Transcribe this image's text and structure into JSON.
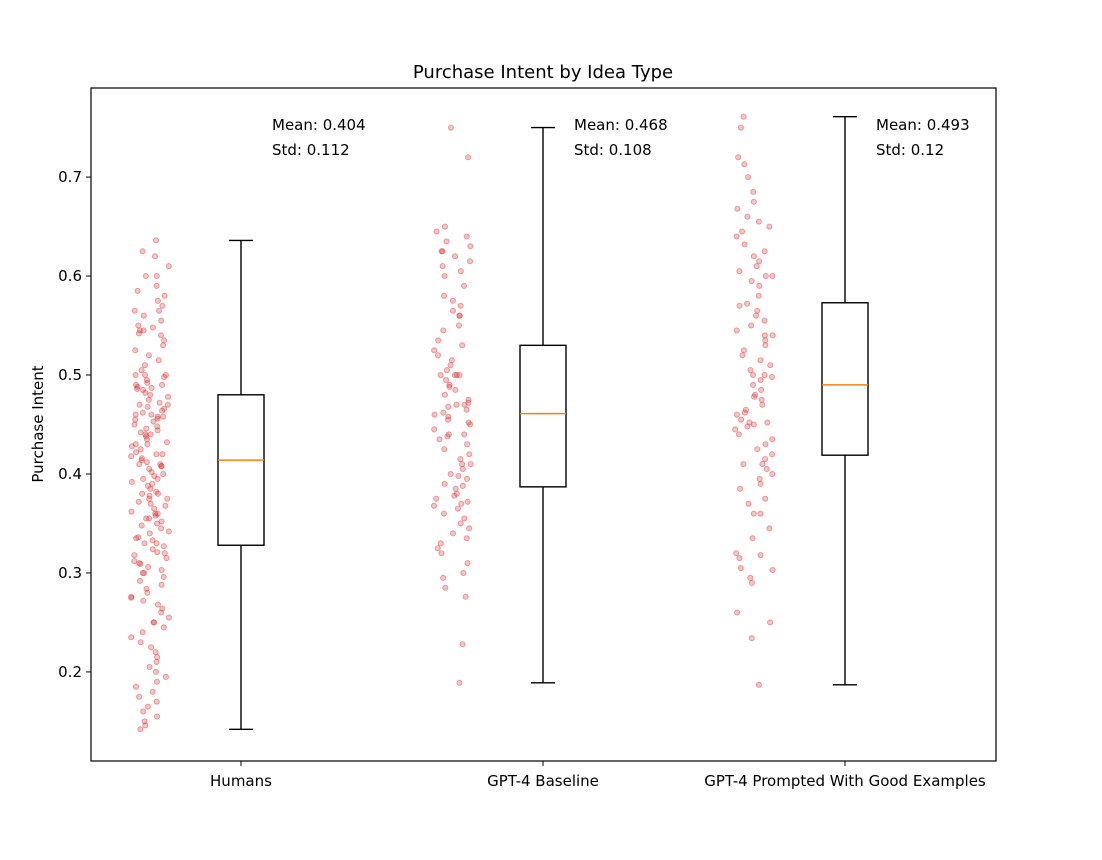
{
  "chart_data": {
    "type": "box",
    "title": "Purchase Intent by Idea Type",
    "xlabel": "",
    "ylabel": "Purchase Intent",
    "ylim": [
      0.11,
      0.79
    ],
    "yticks": [
      0.2,
      0.3,
      0.4,
      0.5,
      0.6,
      0.7
    ],
    "categories": [
      "Humans",
      "GPT-4 Baseline",
      "GPT-4 Prompted With Good Examples"
    ],
    "grid": false,
    "boxes": [
      {
        "category": "Humans",
        "whisker_low": 0.142,
        "q1": 0.328,
        "median": 0.414,
        "q3": 0.48,
        "whisker_high": 0.636,
        "mean_label": "Mean: 0.404",
        "std_label": "Std: 0.112"
      },
      {
        "category": "GPT-4 Baseline",
        "whisker_low": 0.189,
        "q1": 0.387,
        "median": 0.461,
        "q3": 0.53,
        "whisker_high": 0.75,
        "mean_label": "Mean: 0.468",
        "std_label": "Std: 0.108"
      },
      {
        "category": "GPT-4 Prompted With Good Examples",
        "whisker_low": 0.187,
        "q1": 0.419,
        "median": 0.49,
        "q3": 0.573,
        "whisker_high": 0.761,
        "mean_label": "Mean: 0.493",
        "std_label": "Std: 0.12"
      }
    ],
    "scatter_groups": [
      {
        "category": "Humans",
        "values": [
          0.636,
          0.625,
          0.62,
          0.61,
          0.6,
          0.59,
          0.585,
          0.58,
          0.575,
          0.57,
          0.565,
          0.56,
          0.555,
          0.55,
          0.548,
          0.545,
          0.542,
          0.54,
          0.535,
          0.53,
          0.525,
          0.52,
          0.515,
          0.51,
          0.505,
          0.5,
          0.5,
          0.498,
          0.495,
          0.492,
          0.49,
          0.488,
          0.486,
          0.485,
          0.482,
          0.48,
          0.478,
          0.475,
          0.472,
          0.47,
          0.468,
          0.466,
          0.464,
          0.462,
          0.46,
          0.458,
          0.456,
          0.455,
          0.453,
          0.45,
          0.448,
          0.446,
          0.444,
          0.442,
          0.44,
          0.438,
          0.435,
          0.432,
          0.43,
          0.428,
          0.425,
          0.422,
          0.42,
          0.418,
          0.416,
          0.414,
          0.412,
          0.41,
          0.408,
          0.405,
          0.402,
          0.4,
          0.398,
          0.395,
          0.392,
          0.39,
          0.388,
          0.385,
          0.382,
          0.38,
          0.378,
          0.375,
          0.372,
          0.37,
          0.368,
          0.365,
          0.362,
          0.36,
          0.358,
          0.355,
          0.352,
          0.35,
          0.348,
          0.345,
          0.342,
          0.34,
          0.336,
          0.333,
          0.33,
          0.327,
          0.324,
          0.321,
          0.318,
          0.315,
          0.312,
          0.309,
          0.306,
          0.303,
          0.3,
          0.296,
          0.292,
          0.288,
          0.284,
          0.28,
          0.276,
          0.272,
          0.268,
          0.264,
          0.26,
          0.255,
          0.25,
          0.245,
          0.24,
          0.235,
          0.23,
          0.225,
          0.22,
          0.215,
          0.21,
          0.205,
          0.2,
          0.195,
          0.19,
          0.185,
          0.18,
          0.175,
          0.17,
          0.165,
          0.16,
          0.155,
          0.15,
          0.146,
          0.142,
          0.545,
          0.5,
          0.487,
          0.47,
          0.458,
          0.44,
          0.42,
          0.408,
          0.395,
          0.375,
          0.355,
          0.335,
          0.32,
          0.3,
          0.275,
          0.25,
          0.6,
          0.565,
          0.49,
          0.46,
          0.43,
          0.41,
          0.38,
          0.36,
          0.33,
          0.31
        ]
      },
      {
        "category": "GPT-4 Baseline",
        "values": [
          0.75,
          0.72,
          0.65,
          0.645,
          0.64,
          0.635,
          0.63,
          0.625,
          0.625,
          0.62,
          0.615,
          0.61,
          0.605,
          0.6,
          0.59,
          0.58,
          0.575,
          0.57,
          0.565,
          0.56,
          0.55,
          0.545,
          0.535,
          0.53,
          0.525,
          0.52,
          0.515,
          0.51,
          0.505,
          0.5,
          0.5,
          0.5,
          0.495,
          0.49,
          0.488,
          0.485,
          0.48,
          0.475,
          0.472,
          0.47,
          0.468,
          0.465,
          0.462,
          0.46,
          0.458,
          0.455,
          0.452,
          0.45,
          0.445,
          0.44,
          0.438,
          0.435,
          0.43,
          0.425,
          0.42,
          0.415,
          0.41,
          0.405,
          0.4,
          0.398,
          0.395,
          0.39,
          0.388,
          0.385,
          0.38,
          0.378,
          0.375,
          0.372,
          0.37,
          0.368,
          0.365,
          0.36,
          0.355,
          0.35,
          0.345,
          0.34,
          0.335,
          0.33,
          0.325,
          0.32,
          0.31,
          0.3,
          0.295,
          0.285,
          0.276,
          0.228,
          0.189,
          0.56,
          0.5,
          0.47,
          0.44,
          0.41
        ]
      },
      {
        "category": "GPT-4 Prompted With Good Examples",
        "values": [
          0.761,
          0.75,
          0.72,
          0.713,
          0.7,
          0.685,
          0.675,
          0.668,
          0.66,
          0.655,
          0.65,
          0.645,
          0.64,
          0.632,
          0.625,
          0.62,
          0.615,
          0.61,
          0.605,
          0.6,
          0.595,
          0.59,
          0.58,
          0.572,
          0.57,
          0.565,
          0.56,
          0.555,
          0.55,
          0.545,
          0.54,
          0.535,
          0.53,
          0.525,
          0.52,
          0.515,
          0.51,
          0.505,
          0.5,
          0.498,
          0.495,
          0.49,
          0.485,
          0.48,
          0.478,
          0.475,
          0.47,
          0.465,
          0.462,
          0.46,
          0.455,
          0.452,
          0.45,
          0.448,
          0.445,
          0.44,
          0.435,
          0.43,
          0.425,
          0.42,
          0.415,
          0.41,
          0.405,
          0.4,
          0.395,
          0.39,
          0.385,
          0.375,
          0.37,
          0.36,
          0.36,
          0.345,
          0.335,
          0.32,
          0.318,
          0.315,
          0.305,
          0.303,
          0.295,
          0.29,
          0.26,
          0.25,
          0.234,
          0.187,
          0.6,
          0.54,
          0.5,
          0.452,
          0.41
        ]
      }
    ],
    "colors": {
      "scatter": "#d62728",
      "box": "#000000",
      "median": "#ff7f0e"
    }
  }
}
